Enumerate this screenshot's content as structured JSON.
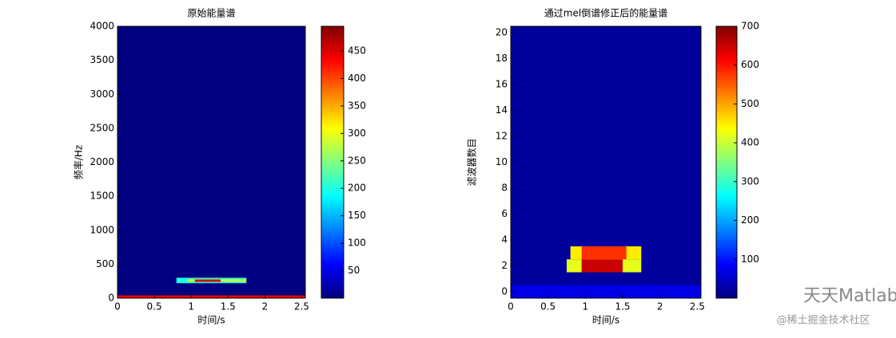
{
  "chart_data": [
    {
      "type": "heatmap",
      "title": "原始能量谱",
      "x_label": "时间/s",
      "y_label": "频率/Hz",
      "xlim": [
        0,
        2.55
      ],
      "ylim": [
        0,
        4000
      ],
      "xticks": [
        0,
        0.5,
        1,
        1.5,
        2,
        2.5
      ],
      "yticks": [
        0,
        500,
        1000,
        1500,
        2000,
        2500,
        3000,
        3500,
        4000
      ],
      "clim": [
        0,
        495
      ],
      "cticks": [
        50,
        100,
        150,
        200,
        250,
        300,
        350,
        400,
        450
      ],
      "regions": [
        {
          "x": [
            0,
            2.55
          ],
          "y": [
            0,
            4000
          ],
          "value": 0
        },
        {
          "x": [
            0,
            2.55
          ],
          "y": [
            0,
            40
          ],
          "value": 440
        },
        {
          "x": [
            0.8,
            1.75
          ],
          "y": [
            220,
            300
          ],
          "value": 200
        },
        {
          "x": [
            0.95,
            1.75
          ],
          "y": [
            240,
            280
          ],
          "value": 280
        },
        {
          "x": [
            1.05,
            1.4
          ],
          "y": [
            240,
            275
          ],
          "value": 450
        }
      ]
    },
    {
      "type": "heatmap",
      "title": "通过mel倒谱修正后的能量谱",
      "x_label": "时间/s",
      "y_label": "滤波器数目",
      "xlim": [
        0,
        2.55
      ],
      "ylim": [
        -0.5,
        20.5
      ],
      "xticks": [
        0,
        0.5,
        1,
        1.5,
        2,
        2.5
      ],
      "yticks": [
        0,
        2,
        4,
        6,
        8,
        10,
        12,
        14,
        16,
        18,
        20
      ],
      "clim": [
        0,
        700
      ],
      "cticks": [
        100,
        200,
        300,
        400,
        500,
        600,
        700
      ],
      "regions": [
        {
          "x": [
            0,
            2.55
          ],
          "y": [
            -0.5,
            20.5
          ],
          "value": 20
        },
        {
          "x": [
            0,
            2.55
          ],
          "y": [
            -0.5,
            0.5
          ],
          "value": 70
        },
        {
          "x": [
            0.75,
            1.75
          ],
          "y": [
            1.5,
            2.5
          ],
          "value": 420
        },
        {
          "x": [
            0.95,
            1.5
          ],
          "y": [
            1.5,
            2.5
          ],
          "value": 650
        },
        {
          "x": [
            0.8,
            1.75
          ],
          "y": [
            2.5,
            3.5
          ],
          "value": 450
        },
        {
          "x": [
            0.95,
            1.55
          ],
          "y": [
            2.5,
            3.5
          ],
          "value": 580
        }
      ]
    }
  ],
  "watermark": {
    "logo_text": "天天Matlab",
    "source": "@稀土掘金技术社区"
  }
}
